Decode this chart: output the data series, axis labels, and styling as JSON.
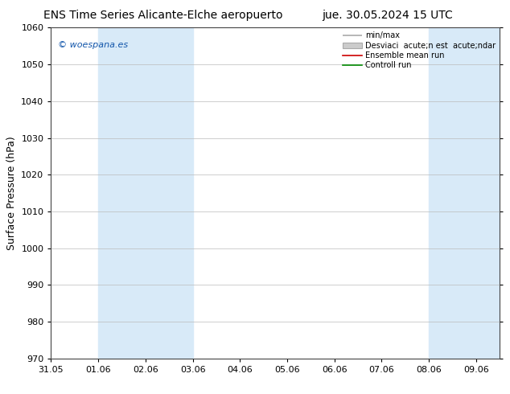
{
  "title_left": "ENS Time Series Alicante-Elche aeropuerto",
  "title_right": "jue. 30.05.2024 15 UTC",
  "ylabel": "Surface Pressure (hPa)",
  "ylim": [
    970,
    1060
  ],
  "yticks": [
    970,
    980,
    990,
    1000,
    1010,
    1020,
    1030,
    1040,
    1050,
    1060
  ],
  "xtick_labels": [
    "31.05",
    "01.06",
    "02.06",
    "03.06",
    "04.06",
    "05.06",
    "06.06",
    "07.06",
    "08.06",
    "09.06"
  ],
  "xtick_positions": [
    0,
    1,
    2,
    3,
    4,
    5,
    6,
    7,
    8,
    9
  ],
  "shaded_bands": [
    {
      "xstart": 1.0,
      "xend": 3.0,
      "color": "#d8eaf8"
    },
    {
      "xstart": 8.0,
      "xend": 9.5,
      "color": "#d8eaf8"
    }
  ],
  "watermark": "© woespana.es",
  "legend_minmax_label": "min/max",
  "legend_std_label": "Desviaci  acute;n est  acute;ndar",
  "legend_ens_label": "Ensemble mean run",
  "legend_ctrl_label": "Controll run",
  "legend_minmax_color": "#aaaaaa",
  "legend_std_color": "#cccccc",
  "legend_ens_color": "#cc0000",
  "legend_ctrl_color": "#008800",
  "background_color": "#ffffff",
  "plot_bg_color": "#ffffff",
  "xmin": 0,
  "xmax": 9.5,
  "title_fontsize": 10,
  "ylabel_fontsize": 9,
  "tick_fontsize": 8,
  "watermark_color": "#1155aa",
  "spine_color": "#444444"
}
